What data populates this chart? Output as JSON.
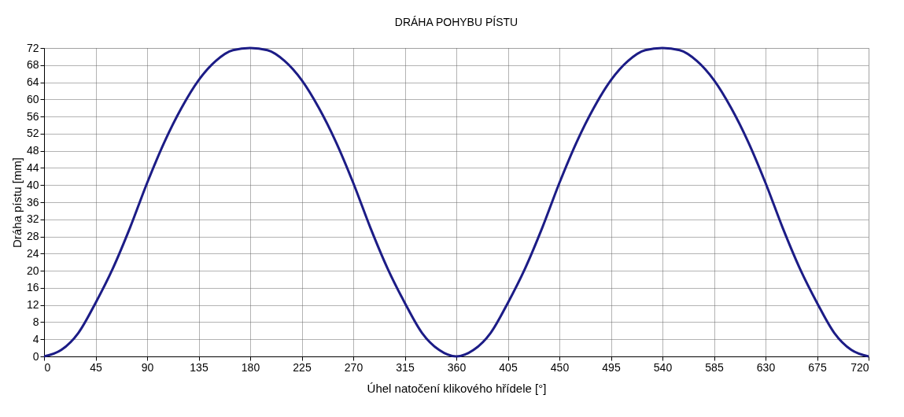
{
  "chart_data": {
    "type": "line",
    "title": "DRÁHA POHYBU PÍSTU",
    "xlabel": "Úhel natočení klikového hřídele [°]",
    "ylabel": "Dráha pístu [mm]",
    "x": [
      0,
      15,
      30,
      45,
      60,
      75,
      90,
      105,
      120,
      135,
      150,
      165,
      180,
      195,
      210,
      225,
      240,
      255,
      270,
      285,
      300,
      315,
      330,
      345,
      360,
      375,
      390,
      405,
      420,
      435,
      450,
      465,
      480,
      495,
      510,
      525,
      540,
      555,
      570,
      585,
      600,
      615,
      630,
      645,
      660,
      675,
      690,
      705,
      720
    ],
    "series": [
      {
        "color": "#1c1c86",
        "values": [
          0,
          1.5,
          5.5,
          12.5,
          20.5,
          30,
          40.5,
          50,
          58,
          64.5,
          69,
          71.5,
          72,
          71.5,
          69,
          64.5,
          58,
          50,
          40.5,
          30,
          20.5,
          12.5,
          5.5,
          1.5,
          0,
          1.5,
          5.5,
          12.5,
          20.5,
          30,
          40.5,
          50,
          58,
          64.5,
          69,
          71.5,
          72,
          71.5,
          69,
          64.5,
          58,
          50,
          40.5,
          30,
          20.5,
          12.5,
          5.5,
          1.5,
          0
        ]
      }
    ],
    "xlim": [
      0,
      720
    ],
    "xticks": [
      0,
      45,
      90,
      135,
      180,
      225,
      270,
      315,
      360,
      405,
      450,
      495,
      540,
      585,
      630,
      675,
      720
    ],
    "ylim": [
      0,
      72
    ],
    "yticks": [
      0,
      4,
      8,
      12,
      16,
      20,
      24,
      28,
      32,
      36,
      40,
      44,
      48,
      52,
      56,
      60,
      64,
      68,
      72
    ],
    "grid": true,
    "marker": "none",
    "line_style": "solid"
  }
}
